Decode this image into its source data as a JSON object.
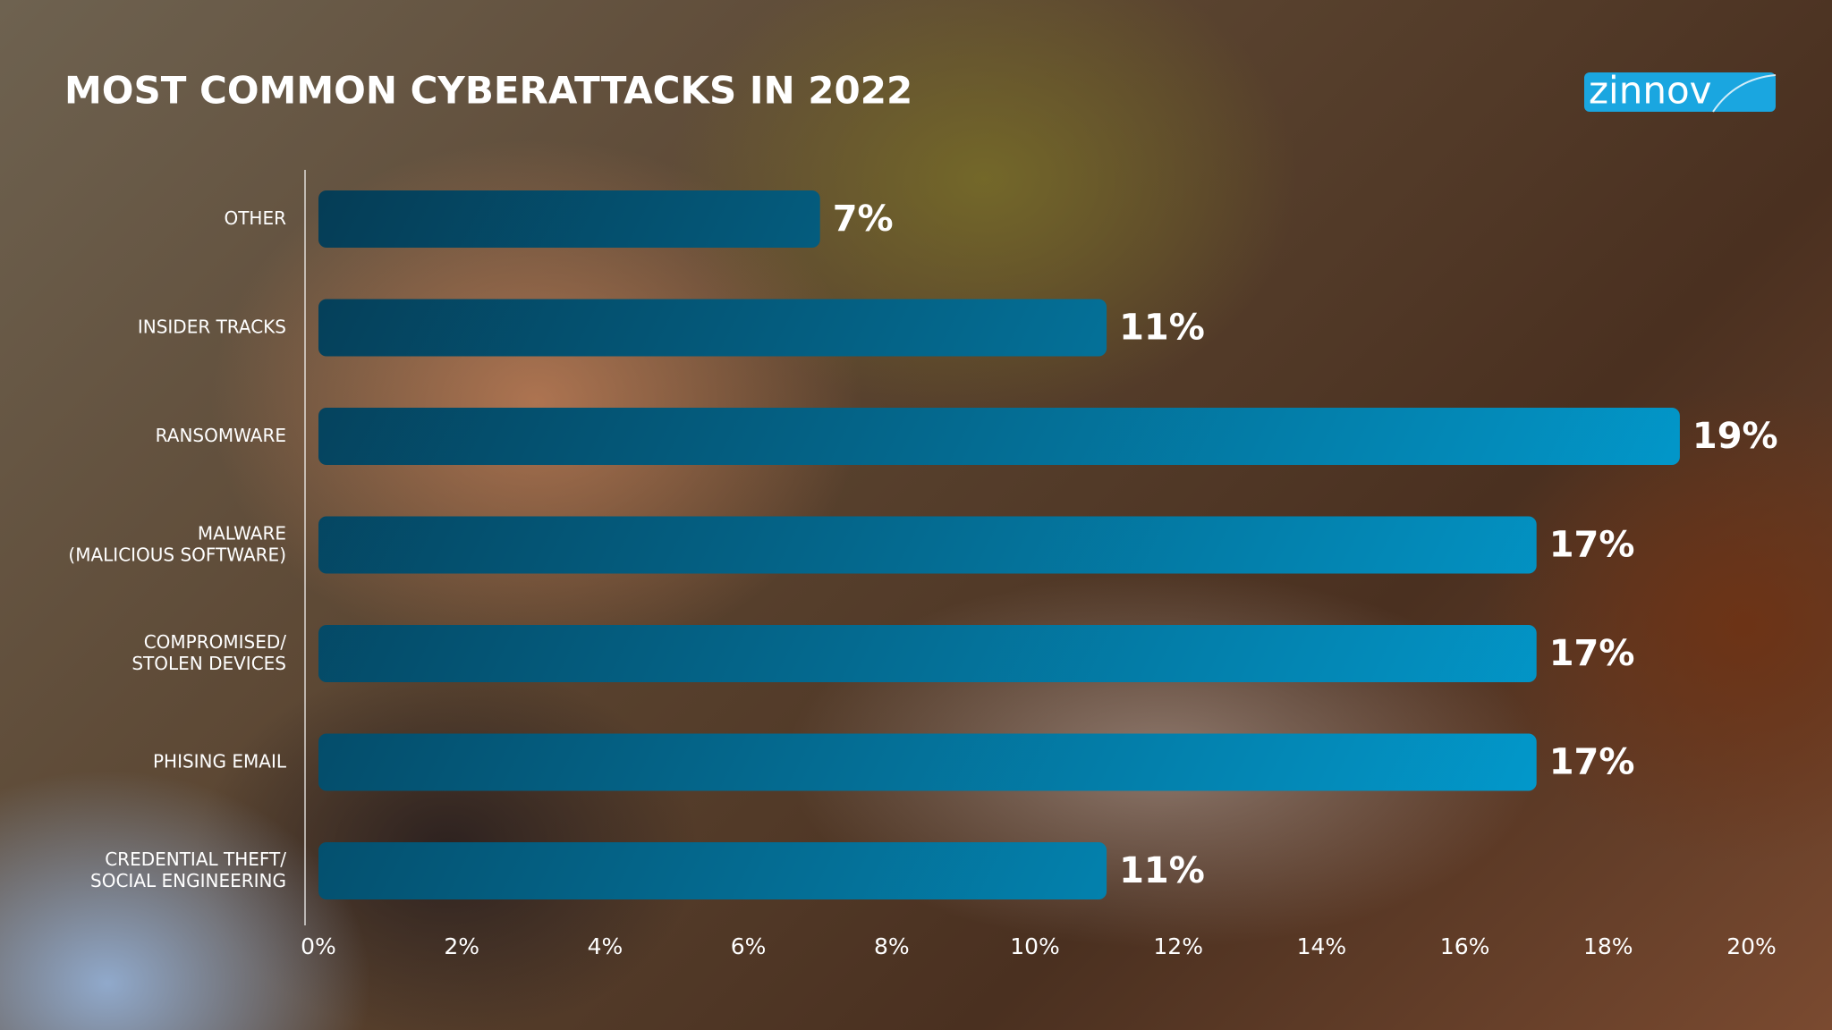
{
  "brand": "zinnov",
  "chart_data": {
    "type": "bar",
    "orientation": "horizontal",
    "title": "MOST COMMON CYBERATTACKS IN 2022",
    "categories": [
      "OTHER",
      "INSIDER TRACKS",
      "RANSOMWARE",
      "MALWARE\n(MALICIOUS SOFTWARE)",
      "COMPROMISED/\nSTOLEN DEVICES",
      "PHISING EMAIL",
      "CREDENTIAL THEFT/\nSOCIAL ENGINEERING"
    ],
    "values": [
      7,
      11,
      19,
      17,
      17,
      17,
      11
    ],
    "value_labels": [
      "7%",
      "11%",
      "19%",
      "17%",
      "17%",
      "17%",
      "11%"
    ],
    "colors": [
      "#053c55",
      "#02a8df"
    ],
    "xlim": [
      0,
      20
    ],
    "xticks": [
      {
        "value": 0,
        "label": "0%"
      },
      {
        "value": 2,
        "label": "2%"
      },
      {
        "value": 4,
        "label": "4%"
      },
      {
        "value": 6,
        "label": "6%"
      },
      {
        "value": 8,
        "label": "8%"
      },
      {
        "value": 10,
        "label": "10%"
      },
      {
        "value": 12,
        "label": "12%"
      },
      {
        "value": 14,
        "label": "14%"
      },
      {
        "value": 16,
        "label": "16%"
      },
      {
        "value": 18,
        "label": "18%"
      },
      {
        "value": 20,
        "label": "20%"
      }
    ]
  }
}
